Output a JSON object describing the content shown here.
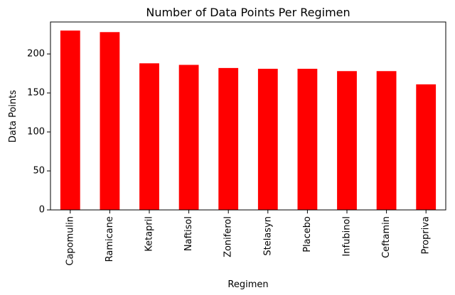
{
  "chart_data": {
    "type": "bar",
    "title": "Number of Data Points Per Regimen",
    "xlabel": "Regimen",
    "ylabel": "Data Points",
    "categories": [
      "Capomulin",
      "Ramicane",
      "Ketapril",
      "Naftisol",
      "Zoniferol",
      "Stelasyn",
      "Placebo",
      "Infubinol",
      "Ceftamin",
      "Propriva"
    ],
    "values": [
      230,
      228,
      188,
      186,
      182,
      181,
      181,
      178,
      178,
      161
    ],
    "ylim": [
      0,
      241
    ],
    "yticks": [
      0,
      50,
      100,
      150,
      200
    ],
    "bar_color": "#ff0000",
    "grid": false,
    "legend": "none"
  }
}
